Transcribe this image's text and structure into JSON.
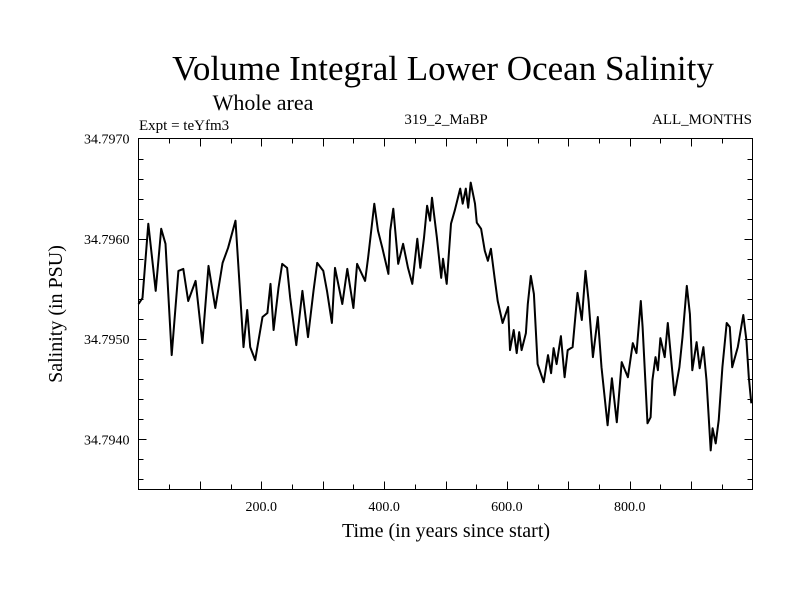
{
  "chart_data": {
    "type": "line",
    "title": "Volume Integral Lower Ocean Salinity",
    "subtitle": "Whole area",
    "annotations": {
      "left": "Expt = teYfm3",
      "center": "319_2_MaBP",
      "right": "ALL_MONTHS"
    },
    "xlabel": "Time (in years since start)",
    "ylabel": "Salinity (in PSU)",
    "xlim": [
      0,
      1000
    ],
    "ylim": [
      34.7935,
      34.797
    ],
    "xticks_major": [
      200,
      400,
      600,
      800
    ],
    "xtick_labels": [
      "200.0",
      "400.0",
      "600.0",
      "800.0"
    ],
    "xticks_minor_step": 50,
    "yticks_major": [
      34.797,
      34.796,
      34.795,
      34.794
    ],
    "ytick_labels": [
      "34.7970",
      "34.7960",
      "34.7950",
      "34.7940"
    ],
    "yticks_minor_step": 0.0002,
    "grid": false,
    "legend": "none",
    "line_color": "#000000",
    "series": [
      {
        "name": "Salinity",
        "x": [
          0,
          6.5,
          16,
          28,
          37,
          44,
          54,
          65,
          73,
          81,
          93,
          104,
          114,
          125,
          137,
          146,
          158,
          171,
          177,
          182,
          190,
          202,
          210,
          215,
          220,
          228,
          234,
          242,
          247,
          257,
          267,
          276,
          285,
          291,
          301,
          307,
          315,
          320,
          332,
          340,
          350,
          356,
          369,
          374,
          384,
          390,
          397,
          407,
          410,
          415,
          423,
          431,
          439,
          446,
          454,
          459,
          465,
          470,
          475,
          478,
          486,
          493,
          496,
          502,
          509,
          515,
          524,
          528,
          533,
          537,
          541,
          548,
          551,
          558,
          564,
          569,
          574,
          580,
          585,
          593,
          602,
          605,
          611,
          616,
          620,
          624,
          631,
          634,
          639,
          644,
          650,
          660,
          667,
          672,
          676,
          681,
          688,
          694,
          699,
          707,
          715,
          722,
          728,
          733,
          740,
          748,
          754,
          764,
          771,
          779,
          787,
          797,
          805,
          811,
          818,
          821,
          829,
          834,
          837,
          842,
          846,
          850,
          857,
          862,
          873,
          881,
          886,
          893,
          898,
          902,
          909,
          914,
          920,
          925,
          932,
          935,
          940,
          945,
          951,
          958,
          963,
          967,
          976,
          985,
          990,
          994,
          998
        ],
        "y": [
          34.79535,
          34.79541,
          34.79615,
          34.79548,
          34.7961,
          34.79595,
          34.79484,
          34.79568,
          34.7957,
          34.79538,
          34.79558,
          34.79496,
          34.79573,
          34.79531,
          34.79576,
          34.79591,
          34.79618,
          34.79492,
          34.79529,
          34.79492,
          34.79479,
          34.79522,
          34.79526,
          34.79555,
          34.79509,
          34.79551,
          34.79575,
          34.79571,
          34.79541,
          34.79494,
          34.79548,
          34.79502,
          34.79548,
          34.79576,
          34.79568,
          34.79548,
          34.79516,
          34.79571,
          34.79535,
          34.7957,
          34.79531,
          34.79575,
          34.79558,
          34.79581,
          34.79635,
          34.79608,
          34.79591,
          34.79565,
          34.79608,
          34.7963,
          34.79575,
          34.79595,
          34.79571,
          34.79555,
          34.796,
          34.79571,
          34.79601,
          34.79633,
          34.79618,
          34.79641,
          34.79601,
          34.79561,
          34.7958,
          34.79555,
          34.79615,
          34.79628,
          34.7965,
          34.79635,
          34.7965,
          34.79631,
          34.79656,
          34.79635,
          34.79616,
          34.7961,
          34.79588,
          34.79578,
          34.7959,
          34.79561,
          34.79538,
          34.79516,
          34.79532,
          34.79489,
          34.79509,
          34.79486,
          34.79507,
          34.79489,
          34.79506,
          34.79535,
          34.79563,
          34.79545,
          34.79475,
          34.79457,
          34.79484,
          34.79466,
          34.79491,
          34.79475,
          34.79503,
          34.79462,
          34.79489,
          34.79492,
          34.79546,
          34.79519,
          34.79568,
          34.79538,
          34.79482,
          34.79522,
          34.79472,
          34.79414,
          34.79461,
          34.79417,
          34.79477,
          34.79462,
          34.79496,
          34.79486,
          34.79538,
          34.79512,
          34.79416,
          34.79422,
          34.79459,
          34.79482,
          34.79469,
          34.79501,
          34.79482,
          34.79516,
          34.79444,
          34.79472,
          34.79502,
          34.79553,
          34.79525,
          34.79469,
          34.79497,
          34.79471,
          34.79492,
          34.79459,
          34.79389,
          34.79411,
          34.79396,
          34.79419,
          34.79472,
          34.79516,
          34.79512,
          34.79472,
          34.79492,
          34.79524,
          34.79499,
          34.79462,
          34.79436
        ]
      }
    ]
  }
}
